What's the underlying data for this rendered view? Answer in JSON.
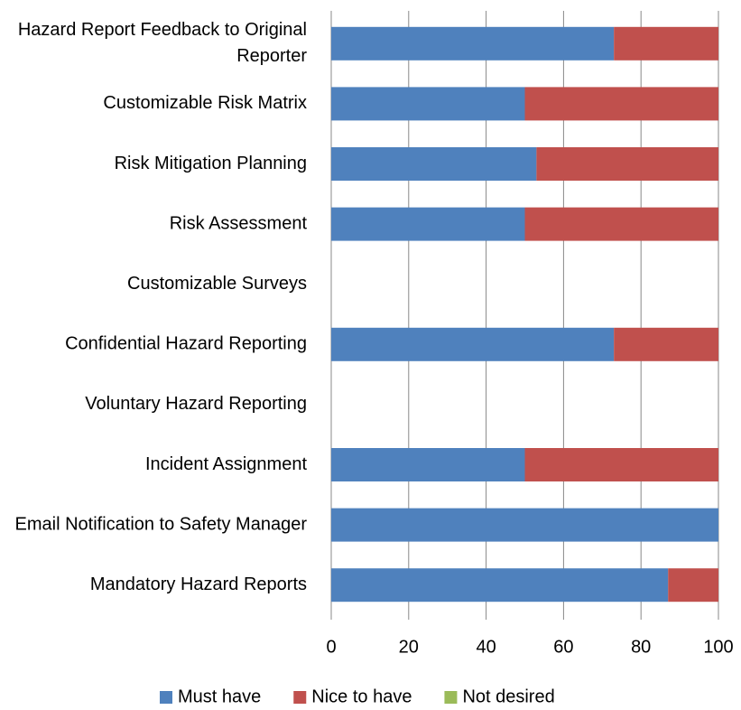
{
  "chart_data": {
    "type": "stacked-bar-horizontal",
    "categories": [
      "Hazard Report Feedback to Original Reporter",
      "Customizable Risk Matrix",
      "Risk Mitigation Planning",
      "Risk Assessment",
      "Customizable Surveys",
      "Confidential Hazard Reporting",
      "Voluntary Hazard Reporting",
      "Incident Assignment",
      "Email Notification to Safety Manager",
      "Mandatory Hazard Reports"
    ],
    "series": [
      {
        "name": "Must have",
        "color": "#4f81bd",
        "values": [
          73,
          50,
          53,
          50,
          null,
          73,
          null,
          50,
          100,
          87
        ]
      },
      {
        "name": "Nice to have",
        "color": "#c0504d",
        "values": [
          27,
          50,
          47,
          50,
          null,
          27,
          null,
          50,
          0,
          13
        ]
      },
      {
        "name": "Not desired",
        "color": "#9bbb59",
        "values": [
          0,
          0,
          0,
          0,
          null,
          0,
          null,
          0,
          0,
          0
        ]
      }
    ],
    "xlim": [
      0,
      100
    ],
    "xticks": [
      0,
      20,
      40,
      60,
      80,
      100
    ],
    "grid": true,
    "legend": "bottom"
  }
}
